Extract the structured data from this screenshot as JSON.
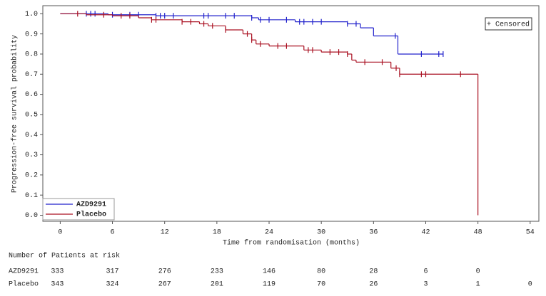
{
  "chart_data": {
    "type": "step",
    "x_label": "Time from randomisation (months)",
    "y_label": "Progression-free survival probability",
    "xlim": [
      -2,
      55
    ],
    "ylim": [
      -0.03,
      1.04
    ],
    "xticks": [
      0,
      6,
      12,
      18,
      24,
      30,
      36,
      42,
      48,
      54
    ],
    "yticks": [
      {
        "value": 0,
        "label": "0.0"
      },
      0.1,
      0.2,
      0.3,
      0.4,
      0.5,
      0.6,
      0.7,
      0.8,
      0.9,
      {
        "value": 1,
        "label": "1.0"
      }
    ],
    "censor_legend": "+ Censored",
    "series": [
      {
        "name": "AZD9291",
        "color": "#2222cc",
        "x": [
          0,
          5.5,
          11,
          22,
          22.8,
          27,
          33,
          34.5,
          36,
          38.8,
          44
        ],
        "values": [
          1,
          0.995,
          0.99,
          0.98,
          0.97,
          0.96,
          0.95,
          0.93,
          0.89,
          0.8,
          0.8
        ],
        "censored": [
          3,
          3.5,
          4,
          6,
          8,
          9,
          11,
          11.5,
          12,
          13,
          16.5,
          17,
          19,
          20,
          22,
          23,
          24,
          26,
          27.5,
          28,
          29,
          30,
          33,
          34,
          38.5,
          41.5,
          43.5,
          44
        ]
      },
      {
        "name": "Placebo",
        "color": "#aa1122",
        "x": [
          0,
          3,
          6,
          9,
          10.5,
          14,
          16,
          17,
          19,
          21,
          22,
          22.5,
          24,
          28,
          30,
          33,
          33.5,
          34,
          38,
          39,
          48
        ],
        "values": [
          1,
          0.995,
          0.99,
          0.98,
          0.97,
          0.96,
          0.95,
          0.94,
          0.92,
          0.9,
          0.87,
          0.85,
          0.84,
          0.82,
          0.81,
          0.8,
          0.77,
          0.76,
          0.73,
          0.7,
          0
        ],
        "censored": [
          2,
          5,
          7,
          8,
          10.5,
          11,
          14,
          15,
          16.5,
          17.5,
          19,
          21.5,
          22,
          23,
          25,
          26,
          28.5,
          29,
          31,
          32,
          33,
          35,
          37,
          38.6,
          39,
          41.5,
          42,
          46
        ]
      }
    ],
    "risk_table": {
      "title": "Number of Patients at risk",
      "rows": [
        {
          "label": "AZD9291",
          "counts": [
            333,
            317,
            276,
            233,
            146,
            80,
            28,
            6,
            0,
            null
          ]
        },
        {
          "label": "Placebo",
          "counts": [
            343,
            324,
            267,
            201,
            119,
            70,
            26,
            3,
            1,
            0
          ]
        }
      ]
    }
  }
}
